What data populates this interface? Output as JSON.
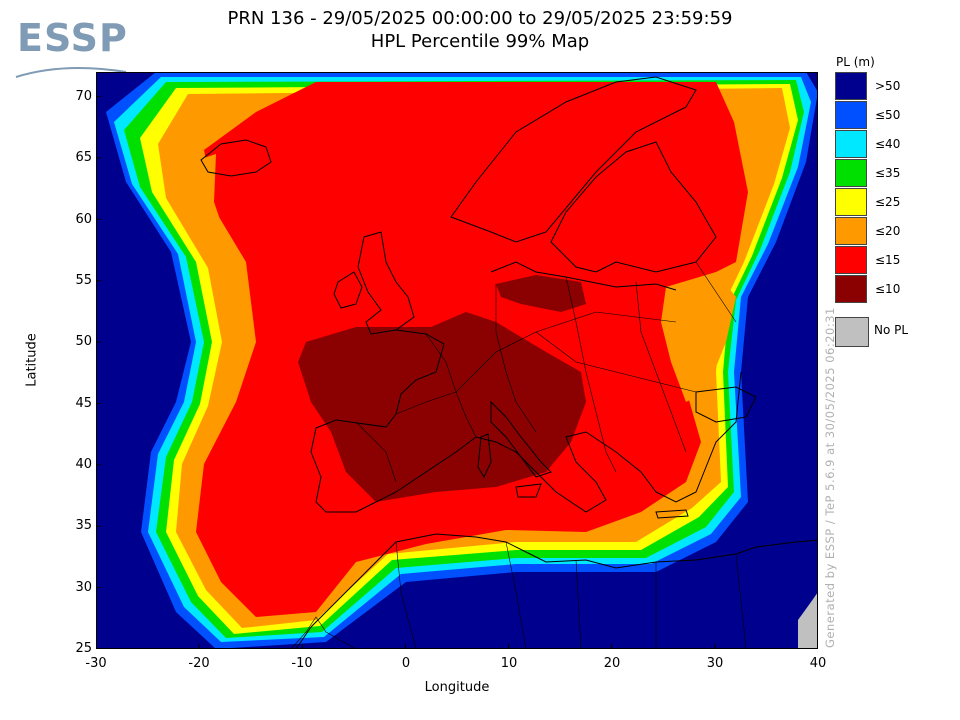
{
  "logo": {
    "text": "ESSP",
    "color": "#7f9bb5"
  },
  "title": {
    "line1": "PRN 136 - 29/05/2025 00:00:00 to 29/05/2025 23:59:59",
    "line2": "HPL Percentile 99% Map"
  },
  "axes": {
    "xlabel": "Longitude",
    "ylabel": "Latitude",
    "xlim": [
      -30,
      40
    ],
    "ylim": [
      25,
      72
    ],
    "xticks": [
      "-30",
      "-20",
      "-10",
      "0",
      "10",
      "20",
      "30",
      "40"
    ],
    "yticks": [
      "25",
      "30",
      "35",
      "40",
      "45",
      "50",
      "55",
      "60",
      "65",
      "70"
    ]
  },
  "legend": {
    "title": "PL (m)",
    "entries": [
      {
        "label": ">50",
        "color": "#00008f"
      },
      {
        "label": "≤50",
        "color": "#0050ff"
      },
      {
        "label": "≤40",
        "color": "#00e8ff"
      },
      {
        "label": "≤35",
        "color": "#00e000"
      },
      {
        "label": "≤25",
        "color": "#ffff00"
      },
      {
        "label": "≤20",
        "color": "#ff9900"
      },
      {
        "label": "≤15",
        "color": "#ff0000"
      },
      {
        "label": "≤10",
        "color": "#8b0000"
      }
    ],
    "no_pl": {
      "label": "No PL",
      "color": "#c0c0c0"
    }
  },
  "watermark": "Generated by ESSP / TeP 5.6.9 at 30/05/2025 06:20:31"
}
